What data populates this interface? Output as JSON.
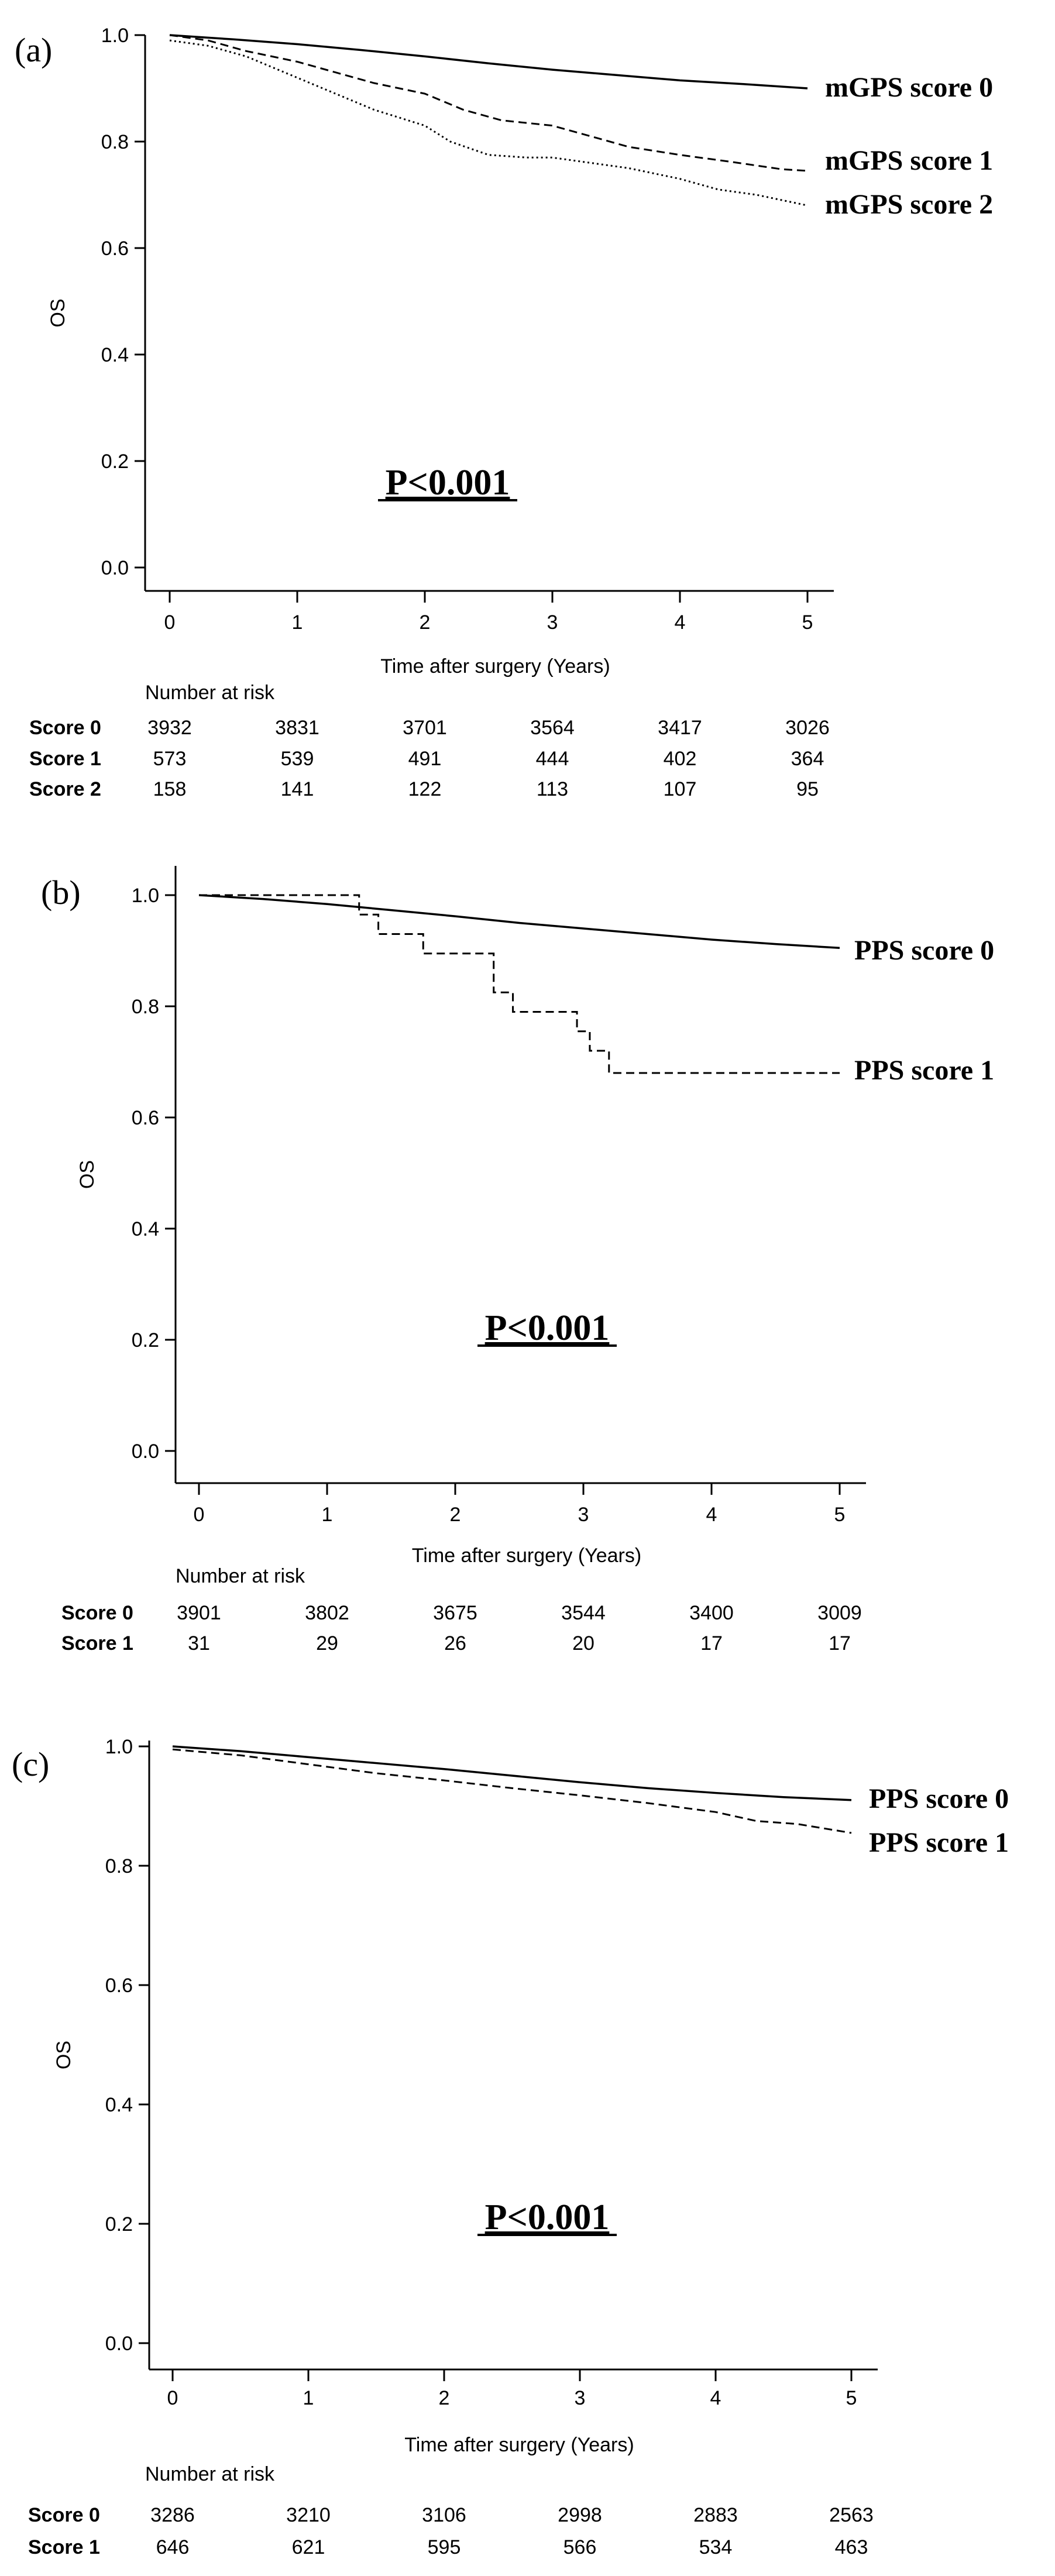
{
  "chart_data": [
    {
      "type": "line",
      "panel": "(a)",
      "xlabel": "Time after surgery (Years)",
      "ylabel": "OS",
      "xlim": [
        0,
        5
      ],
      "ylim": [
        0,
        1
      ],
      "x_ticks": [
        "0",
        "1",
        "2",
        "3",
        "4",
        "5"
      ],
      "y_ticks": [
        "0.0",
        "0.2",
        "0.4",
        "0.6",
        "0.8",
        "1.0"
      ],
      "p_value": "P<0.001",
      "series": [
        {
          "name": "mGPS score 0",
          "dash": "solid",
          "x": [
            0,
            0.5,
            1,
            1.5,
            2,
            2.5,
            3,
            3.5,
            4,
            4.5,
            5
          ],
          "values": [
            1.0,
            0.992,
            0.983,
            0.972,
            0.96,
            0.947,
            0.935,
            0.925,
            0.915,
            0.908,
            0.9
          ]
        },
        {
          "name": "mGPS score 1",
          "dash": "dashed",
          "x": [
            0,
            0.3,
            0.6,
            1,
            1.3,
            1.6,
            2,
            2.3,
            2.6,
            3,
            3.3,
            3.6,
            4,
            4.4,
            4.8,
            5
          ],
          "values": [
            1.0,
            0.99,
            0.97,
            0.95,
            0.93,
            0.91,
            0.89,
            0.86,
            0.84,
            0.83,
            0.81,
            0.79,
            0.775,
            0.762,
            0.748,
            0.745
          ]
        },
        {
          "name": "mGPS score 2",
          "dash": "dotted",
          "x": [
            0,
            0.3,
            0.6,
            1,
            1.3,
            1.6,
            2,
            2.2,
            2.5,
            2.8,
            3,
            3.3,
            3.6,
            4,
            4.3,
            4.6,
            5
          ],
          "values": [
            0.99,
            0.98,
            0.96,
            0.92,
            0.89,
            0.86,
            0.83,
            0.8,
            0.775,
            0.77,
            0.77,
            0.76,
            0.75,
            0.73,
            0.71,
            0.7,
            0.68
          ]
        }
      ],
      "risk_table": {
        "title": "Number at risk",
        "rows": [
          {
            "label": "Score 0",
            "values": [
              "3932",
              "3831",
              "3701",
              "3564",
              "3417",
              "3026"
            ]
          },
          {
            "label": "Score 1",
            "values": [
              "573",
              "539",
              "491",
              "444",
              "402",
              "364"
            ]
          },
          {
            "label": "Score 2",
            "values": [
              "158",
              "141",
              "122",
              "113",
              "107",
              "95"
            ]
          }
        ]
      }
    },
    {
      "type": "line",
      "panel": "(b)",
      "xlabel": "Time after surgery (Years)",
      "ylabel": "OS",
      "xlim": [
        0,
        5
      ],
      "ylim": [
        0,
        1
      ],
      "x_ticks": [
        "0",
        "1",
        "2",
        "3",
        "4",
        "5"
      ],
      "y_ticks": [
        "0.0",
        "0.2",
        "0.4",
        "0.6",
        "0.8",
        "1.0"
      ],
      "p_value": "P<0.001",
      "series": [
        {
          "name": "PPS score 0",
          "dash": "solid",
          "x": [
            0,
            0.5,
            1,
            1.5,
            2,
            2.5,
            3,
            3.5,
            4,
            4.5,
            5
          ],
          "values": [
            1.0,
            0.993,
            0.984,
            0.973,
            0.962,
            0.95,
            0.94,
            0.93,
            0.92,
            0.912,
            0.905
          ]
        },
        {
          "name": "PPS score 1",
          "dash": "dashed",
          "step": true,
          "x": [
            0,
            1.25,
            1.4,
            1.75,
            2.3,
            2.45,
            2.95,
            3.05,
            3.2,
            5
          ],
          "values": [
            1.0,
            0.965,
            0.93,
            0.895,
            0.825,
            0.79,
            0.755,
            0.72,
            0.68,
            0.68
          ]
        }
      ],
      "risk_table": {
        "title": "Number at risk",
        "rows": [
          {
            "label": "Score 0",
            "values": [
              "3901",
              "3802",
              "3675",
              "3544",
              "3400",
              "3009"
            ]
          },
          {
            "label": "Score 1",
            "values": [
              "31",
              "29",
              "26",
              "20",
              "17",
              "17"
            ]
          }
        ]
      }
    },
    {
      "type": "line",
      "panel": "(c)",
      "xlabel": "Time after surgery (Years)",
      "ylabel": "OS",
      "xlim": [
        0,
        5
      ],
      "ylim": [
        0,
        1
      ],
      "x_ticks": [
        "0",
        "1",
        "2",
        "3",
        "4",
        "5"
      ],
      "y_ticks": [
        "0.0",
        "0.2",
        "0.4",
        "0.6",
        "0.8",
        "1.0"
      ],
      "p_value": "P<0.001",
      "series": [
        {
          "name": "PPS score 0",
          "dash": "solid",
          "x": [
            0,
            0.5,
            1,
            1.5,
            2,
            2.5,
            3,
            3.5,
            4,
            4.5,
            5
          ],
          "values": [
            1.0,
            0.992,
            0.982,
            0.972,
            0.962,
            0.951,
            0.94,
            0.93,
            0.922,
            0.915,
            0.91
          ]
        },
        {
          "name": "PPS score 1",
          "dash": "dashed",
          "x": [
            0,
            0.5,
            1,
            1.5,
            2,
            2.5,
            3,
            3.5,
            4,
            4.3,
            4.6,
            5
          ],
          "values": [
            0.995,
            0.985,
            0.97,
            0.955,
            0.943,
            0.93,
            0.918,
            0.905,
            0.89,
            0.875,
            0.87,
            0.855
          ]
        }
      ],
      "risk_table": {
        "title": "Number at risk",
        "rows": [
          {
            "label": "Score 0",
            "values": [
              "3286",
              "3210",
              "3106",
              "2998",
              "2883",
              "2563"
            ]
          },
          {
            "label": "Score 1",
            "values": [
              "646",
              "621",
              "595",
              "566",
              "534",
              "463"
            ]
          }
        ]
      }
    }
  ]
}
